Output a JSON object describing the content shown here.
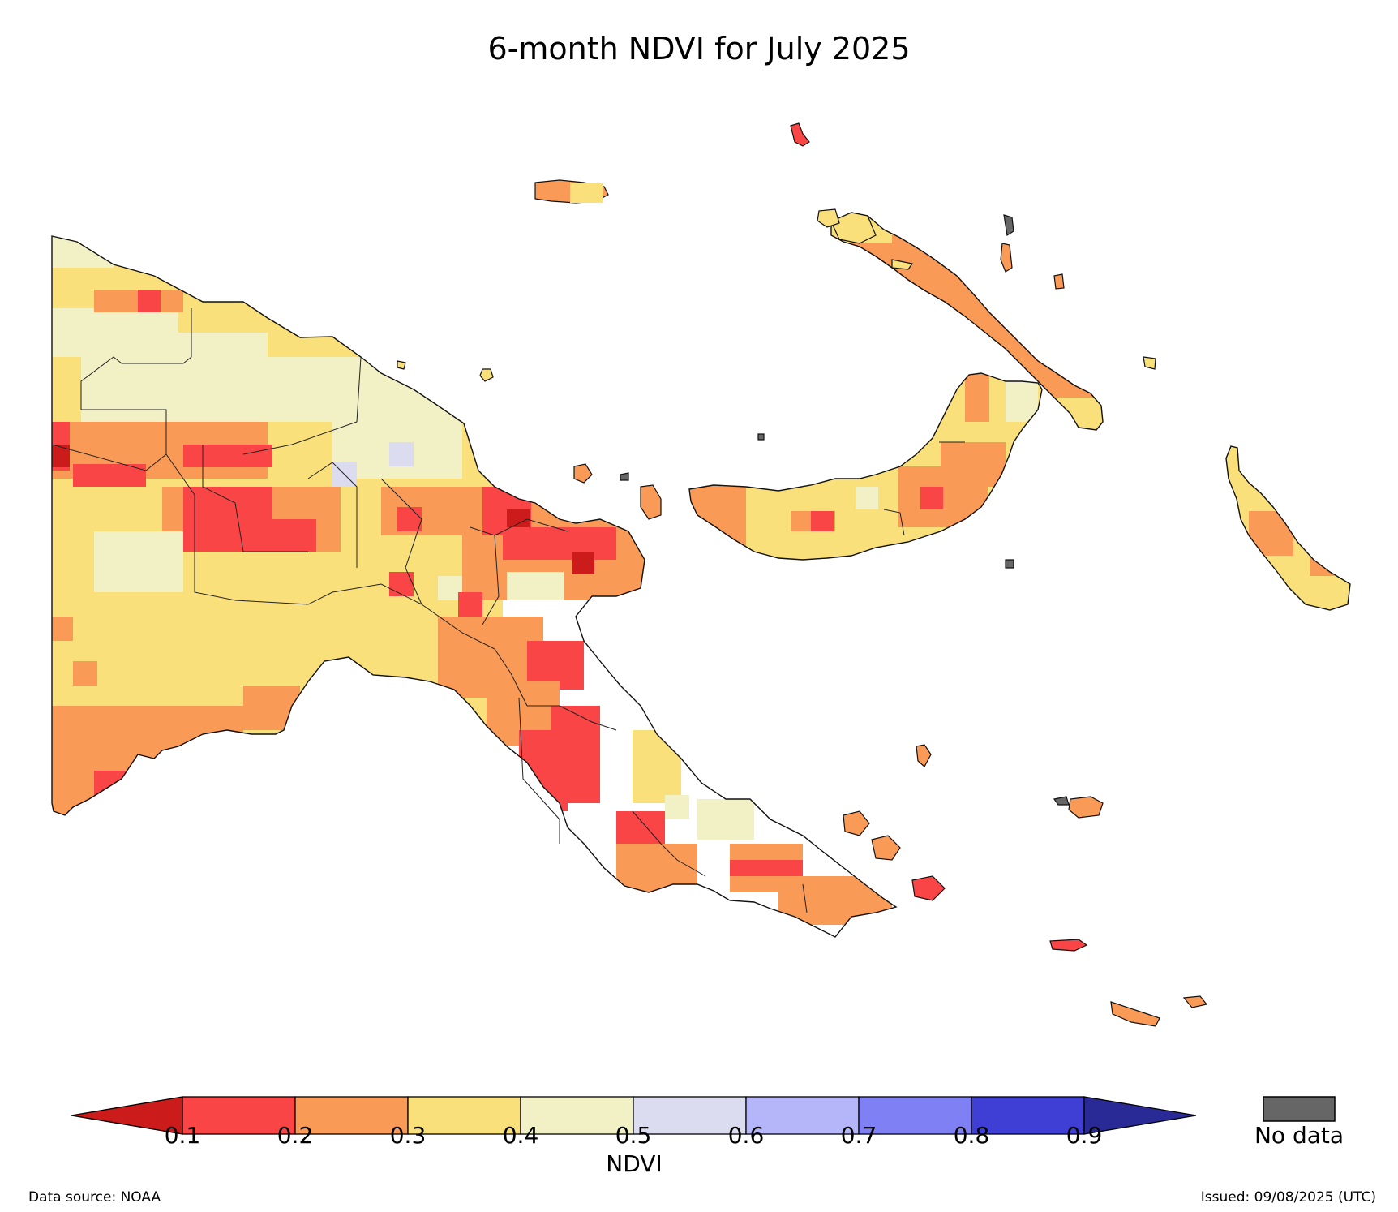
{
  "title": "6-month NDVI for July 2025",
  "colorbar": {
    "label": "NDVI",
    "ticks": [
      "0.1",
      "0.2",
      "0.3",
      "0.4",
      "0.5",
      "0.6",
      "0.7",
      "0.8",
      "0.9"
    ],
    "bins": [
      {
        "range": "<0.1",
        "color": "#cc1b1b"
      },
      {
        "range": "0.1-0.2",
        "color": "#f94545"
      },
      {
        "range": "0.2-0.3",
        "color": "#f99a57"
      },
      {
        "range": "0.3-0.4",
        "color": "#f9e07a"
      },
      {
        "range": "0.4-0.5",
        "color": "#f2f1c6"
      },
      {
        "range": "0.5-0.6",
        "color": "#dcdcf0"
      },
      {
        "range": "0.6-0.7",
        "color": "#b5b5fa"
      },
      {
        "range": "0.7-0.8",
        "color": "#8080f5"
      },
      {
        "range": "0.8-0.9",
        "color": "#3f3fd6"
      },
      {
        "range": ">0.9",
        "color": "#2a2a96"
      }
    ],
    "nodata_label": "No data",
    "nodata_color": "#666666"
  },
  "footer": {
    "source": "Data source: NOAA",
    "issued": "Issued: 09/08/2025 (UTC)"
  }
}
